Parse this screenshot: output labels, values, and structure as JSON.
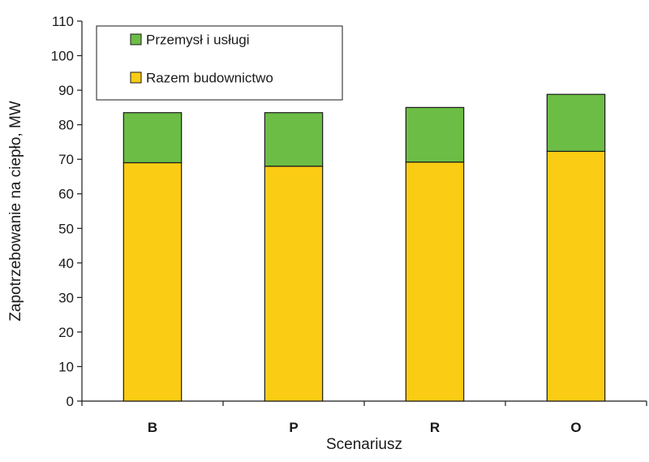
{
  "chart_data": {
    "type": "bar",
    "stacked": true,
    "categories": [
      "B",
      "P",
      "R",
      "O"
    ],
    "series": [
      {
        "name": "Razem budownictwo",
        "values": [
          69,
          68,
          69.2,
          72.3
        ],
        "color": "#FACC14"
      },
      {
        "name": "Przemysł i usługi",
        "values": [
          14.5,
          15.5,
          15.8,
          16.5
        ],
        "color": "#6CBD45"
      }
    ],
    "title": "",
    "xlabel": "Scenariusz",
    "ylabel": "Zapotrzebowanie na ciepło, MW",
    "ylim": [
      0,
      110
    ],
    "yticks": [
      0,
      10,
      20,
      30,
      40,
      50,
      60,
      70,
      80,
      90,
      100,
      110
    ],
    "grid": false,
    "legend": {
      "placement": "top-left",
      "order": [
        "Przemysł i usługi",
        "Razem budownictwo"
      ]
    }
  }
}
